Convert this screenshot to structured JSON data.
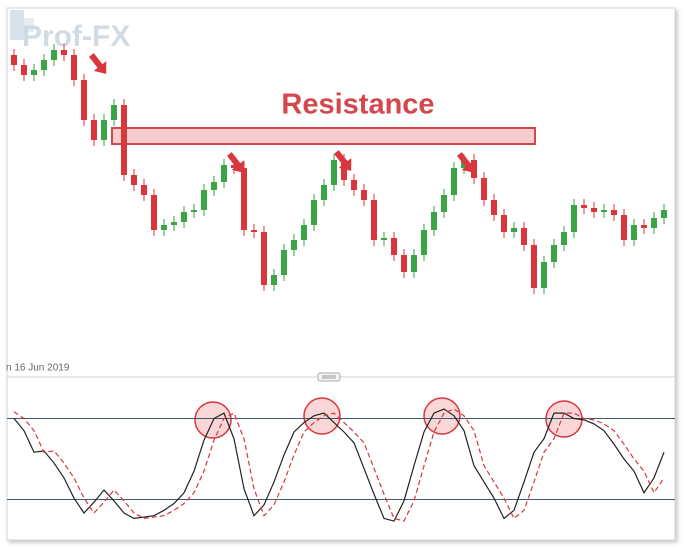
{
  "watermark": "Prof-FX",
  "chart_data": [
    {
      "type": "candlestick",
      "date_label": "n 16 Jun 2019",
      "ylim": [
        0,
        367
      ],
      "up_color": "#3aa545",
      "down_color": "#d9363e",
      "resistance": {
        "label": "Resistance",
        "low": 231,
        "high": 247,
        "color": "#d4474d",
        "fill": "#f7cccc"
      },
      "open": [
        320,
        310,
        300,
        305,
        315,
        325,
        320,
        295,
        255,
        235,
        255,
        270,
        200,
        190,
        180,
        145,
        150,
        153,
        163,
        165,
        185,
        193,
        210,
        207,
        145,
        143,
        90,
        100,
        125,
        135,
        150,
        175,
        190,
        215,
        195,
        185,
        175,
        135,
        137,
        120,
        103,
        120,
        145,
        163,
        180,
        207,
        215,
        197,
        175,
        160,
        143,
        147,
        130,
        87,
        113,
        130,
        143,
        170,
        167,
        163,
        165,
        160,
        135,
        150,
        147,
        157
      ],
      "high": [
        326,
        316,
        311,
        321,
        331,
        331,
        326,
        301,
        261,
        261,
        276,
        276,
        206,
        196,
        186,
        156,
        159,
        169,
        171,
        191,
        199,
        216,
        216,
        213,
        151,
        149,
        106,
        131,
        141,
        156,
        181,
        196,
        221,
        221,
        201,
        191,
        181,
        143,
        143,
        126,
        126,
        151,
        169,
        186,
        213,
        221,
        221,
        203,
        181,
        166,
        153,
        153,
        136,
        119,
        136,
        149,
        176,
        176,
        173,
        171,
        171,
        166,
        156,
        156,
        163,
        171
      ],
      "low": [
        304,
        294,
        294,
        299,
        309,
        314,
        289,
        249,
        229,
        229,
        249,
        194,
        184,
        174,
        139,
        139,
        144,
        147,
        157,
        159,
        179,
        187,
        201,
        139,
        137,
        84,
        84,
        94,
        119,
        129,
        144,
        169,
        184,
        189,
        179,
        169,
        129,
        129,
        114,
        97,
        97,
        114,
        139,
        157,
        174,
        201,
        191,
        169,
        154,
        137,
        137,
        124,
        81,
        81,
        107,
        124,
        137,
        161,
        157,
        157,
        154,
        129,
        129,
        141,
        141,
        151
      ],
      "close": [
        310,
        300,
        305,
        315,
        325,
        320,
        295,
        255,
        235,
        255,
        270,
        200,
        190,
        180,
        145,
        150,
        153,
        163,
        165,
        185,
        193,
        210,
        207,
        145,
        143,
        90,
        100,
        125,
        135,
        150,
        175,
        190,
        215,
        195,
        185,
        175,
        135,
        137,
        120,
        103,
        120,
        145,
        163,
        180,
        207,
        215,
        197,
        175,
        160,
        143,
        147,
        130,
        87,
        113,
        130,
        143,
        170,
        167,
        163,
        165,
        160,
        135,
        150,
        147,
        157,
        165
      ]
    },
    {
      "type": "line",
      "ylim": [
        -10,
        110
      ],
      "levels": [
        20,
        80
      ],
      "level_color": "#3d5a73",
      "series": [
        {
          "color": "#222222",
          "dash": false,
          "values": [
            80,
            71,
            55,
            56,
            47,
            36,
            21,
            10,
            18,
            27,
            19,
            10,
            6,
            7,
            8,
            12,
            17,
            25,
            41,
            64,
            80,
            84,
            65,
            28,
            8,
            16,
            33,
            53,
            70,
            77,
            82,
            84,
            77,
            70,
            62,
            43,
            24,
            6,
            4,
            19,
            45,
            70,
            84,
            87,
            82,
            71,
            45,
            33,
            21,
            6,
            12,
            33,
            55,
            65,
            84,
            84,
            80,
            79,
            76,
            71,
            61,
            50,
            41,
            25,
            36,
            55
          ]
        },
        {
          "color": "#d9363e",
          "dash": true,
          "values": [
            85,
            80,
            71,
            55,
            56,
            47,
            36,
            21,
            10,
            18,
            27,
            19,
            10,
            6,
            7,
            8,
            12,
            17,
            25,
            41,
            64,
            80,
            84,
            65,
            28,
            8,
            16,
            33,
            53,
            70,
            77,
            82,
            84,
            77,
            70,
            62,
            43,
            24,
            6,
            4,
            19,
            45,
            70,
            84,
            87,
            82,
            71,
            45,
            33,
            21,
            6,
            12,
            33,
            55,
            65,
            84,
            84,
            80,
            79,
            76,
            71,
            61,
            50,
            41,
            25,
            36
          ]
        }
      ]
    }
  ]
}
